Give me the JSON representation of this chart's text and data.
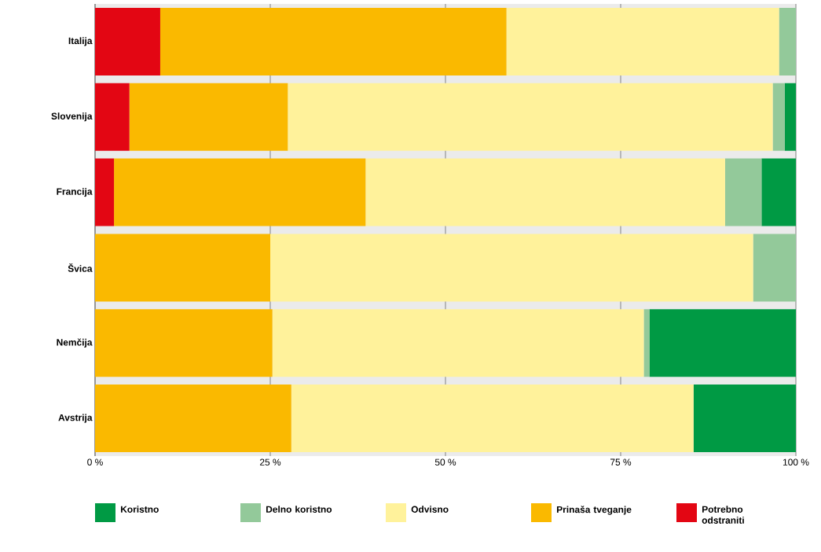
{
  "chart_data": {
    "type": "bar",
    "orientation": "horizontal",
    "stacked": true,
    "categories": [
      "Italija",
      "Slovenija",
      "Francija",
      "Švica",
      "Nemčija",
      "Avstrija"
    ],
    "series": [
      {
        "name": "Potrebno odstraniti",
        "color": "#e30613",
        "values": [
          9.3,
          4.9,
          2.7,
          0,
          0,
          0
        ]
      },
      {
        "name": "Prinaša tveganje",
        "color": "#fab900",
        "values": [
          49.4,
          22.6,
          35.9,
          25.0,
          25.3,
          28.0
        ]
      },
      {
        "name": "Odvisno",
        "color": "#fff29b",
        "values": [
          38.9,
          69.2,
          51.3,
          68.9,
          53.0,
          57.4
        ]
      },
      {
        "name": "Delno koristno",
        "color": "#93c99a",
        "values": [
          2.4,
          1.7,
          5.2,
          6.1,
          0.8,
          0
        ]
      },
      {
        "name": "Koristno",
        "color": "#009a44",
        "values": [
          0,
          1.6,
          4.9,
          0,
          20.9,
          14.6
        ]
      }
    ],
    "xlim": [
      0,
      100
    ],
    "xticks": [
      {
        "value": 0,
        "label": "0 %"
      },
      {
        "value": 25,
        "label": "25 %"
      },
      {
        "value": 50,
        "label": "50 %"
      },
      {
        "value": 75,
        "label": "75 %"
      },
      {
        "value": 100,
        "label": "100 %"
      }
    ],
    "grid": "x",
    "legend": "bottom"
  }
}
